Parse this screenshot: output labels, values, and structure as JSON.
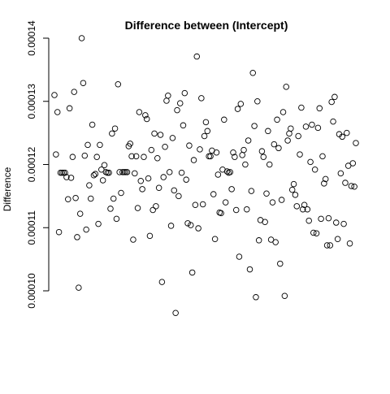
{
  "chart_data": {
    "type": "scatter",
    "title": "Difference between (Intercept)",
    "xlabel": "",
    "ylabel": "Difference",
    "xlim": [
      1,
      200
    ],
    "ylim": [
      9.55e-05,
      0.00014
    ],
    "y_ticks": [
      0.0001,
      0.00011,
      0.00012,
      0.00013,
      0.00014
    ],
    "y_tick_labels": [
      "0.00010",
      "0.00011",
      "0.00012",
      "0.00013",
      "0.00014"
    ],
    "x_ticks_shown": false,
    "grid": false,
    "legend": "none",
    "marker": "open-circle",
    "points": [
      {
        "x": 1,
        "y": 0.000131
      },
      {
        "x": 2,
        "y": 0.0001216
      },
      {
        "x": 3,
        "y": 0.0001283
      },
      {
        "x": 4,
        "y": 0.0001093
      },
      {
        "x": 5,
        "y": 0.0001187
      },
      {
        "x": 6,
        "y": 0.0001187
      },
      {
        "x": 7,
        "y": 0.0001187
      },
      {
        "x": 8,
        "y": 0.0001187
      },
      {
        "x": 9,
        "y": 0.000118
      },
      {
        "x": 10,
        "y": 0.0001145
      },
      {
        "x": 11,
        "y": 0.0001289
      },
      {
        "x": 12,
        "y": 0.0001179
      },
      {
        "x": 13,
        "y": 0.0001212
      },
      {
        "x": 14,
        "y": 0.0001315
      },
      {
        "x": 15,
        "y": 0.0001147
      },
      {
        "x": 16,
        "y": 0.0001085
      },
      {
        "x": 17,
        "y": 0.0001005
      },
      {
        "x": 18,
        "y": 0.0001122
      },
      {
        "x": 19,
        "y": 0.00014
      },
      {
        "x": 20,
        "y": 0.0001329
      },
      {
        "x": 21,
        "y": 0.0001214
      },
      {
        "x": 22,
        "y": 0.0001097
      },
      {
        "x": 23,
        "y": 0.0001231
      },
      {
        "x": 24,
        "y": 0.0001167
      },
      {
        "x": 25,
        "y": 0.0001146
      },
      {
        "x": 26,
        "y": 0.0001263
      },
      {
        "x": 27,
        "y": 0.0001183
      },
      {
        "x": 28,
        "y": 0.0001185
      },
      {
        "x": 29,
        "y": 0.0001212
      },
      {
        "x": 30,
        "y": 0.0001106
      },
      {
        "x": 31,
        "y": 0.0001231
      },
      {
        "x": 32,
        "y": 0.0001192
      },
      {
        "x": 33,
        "y": 0.0001175
      },
      {
        "x": 34,
        "y": 0.0001199
      },
      {
        "x": 35,
        "y": 0.0001188
      },
      {
        "x": 36,
        "y": 0.0001187
      },
      {
        "x": 37,
        "y": 0.0001187
      },
      {
        "x": 38,
        "y": 0.000113
      },
      {
        "x": 39,
        "y": 0.0001249
      },
      {
        "x": 40,
        "y": 0.0001146
      },
      {
        "x": 41,
        "y": 0.0001257
      },
      {
        "x": 42,
        "y": 0.0001114
      },
      {
        "x": 43,
        "y": 0.0001327
      },
      {
        "x": 44,
        "y": 0.0001188
      },
      {
        "x": 45,
        "y": 0.0001155
      },
      {
        "x": 46,
        "y": 0.0001188
      },
      {
        "x": 47,
        "y": 0.0001188
      },
      {
        "x": 48,
        "y": 0.0001188
      },
      {
        "x": 49,
        "y": 0.0001188
      },
      {
        "x": 50,
        "y": 0.0001229
      },
      {
        "x": 51,
        "y": 0.0001233
      },
      {
        "x": 52,
        "y": 0.0001213
      },
      {
        "x": 53,
        "y": 0.0001081
      },
      {
        "x": 54,
        "y": 0.0001186
      },
      {
        "x": 55,
        "y": 0.0001213
      },
      {
        "x": 56,
        "y": 0.0001131
      },
      {
        "x": 57,
        "y": 0.0001283
      },
      {
        "x": 58,
        "y": 0.0001174
      },
      {
        "x": 59,
        "y": 0.0001161
      },
      {
        "x": 60,
        "y": 0.0001212
      },
      {
        "x": 61,
        "y": 0.0001278
      },
      {
        "x": 62,
        "y": 0.0001272
      },
      {
        "x": 63,
        "y": 0.0001178
      },
      {
        "x": 64,
        "y": 0.0001087
      },
      {
        "x": 65,
        "y": 0.0001223
      },
      {
        "x": 66,
        "y": 0.0001128
      },
      {
        "x": 67,
        "y": 0.0001249
      },
      {
        "x": 68,
        "y": 0.0001134
      },
      {
        "x": 69,
        "y": 0.000121
      },
      {
        "x": 70,
        "y": 0.0001163
      },
      {
        "x": 71,
        "y": 0.0001247
      },
      {
        "x": 72,
        "y": 0.0001014
      },
      {
        "x": 73,
        "y": 0.000118
      },
      {
        "x": 74,
        "y": 0.0001228
      },
      {
        "x": 75,
        "y": 0.0001301
      },
      {
        "x": 76,
        "y": 0.0001309
      },
      {
        "x": 77,
        "y": 0.0001188
      },
      {
        "x": 78,
        "y": 0.0001103
      },
      {
        "x": 79,
        "y": 0.0001242
      },
      {
        "x": 80,
        "y": 0.0001159
      },
      {
        "x": 81,
        "y": 9.65e-05
      },
      {
        "x": 82,
        "y": 0.0001286
      },
      {
        "x": 83,
        "y": 0.000115
      },
      {
        "x": 84,
        "y": 0.0001297
      },
      {
        "x": 85,
        "y": 0.0001187
      },
      {
        "x": 86,
        "y": 0.0001262
      },
      {
        "x": 87,
        "y": 0.0001313
      },
      {
        "x": 88,
        "y": 0.0001176
      },
      {
        "x": 89,
        "y": 0.0001107
      },
      {
        "x": 90,
        "y": 0.000123
      },
      {
        "x": 91,
        "y": 0.0001104
      },
      {
        "x": 92,
        "y": 0.0001029
      },
      {
        "x": 93,
        "y": 0.0001207
      },
      {
        "x": 94,
        "y": 0.0001136
      },
      {
        "x": 95,
        "y": 0.0001371
      },
      {
        "x": 96,
        "y": 0.0001099
      },
      {
        "x": 97,
        "y": 0.0001224
      },
      {
        "x": 98,
        "y": 0.0001305
      },
      {
        "x": 99,
        "y": 0.0001137
      },
      {
        "x": 100,
        "y": 0.0001245
      },
      {
        "x": 101,
        "y": 0.0001267
      },
      {
        "x": 102,
        "y": 0.0001253
      },
      {
        "x": 103,
        "y": 0.0001213
      },
      {
        "x": 104,
        "y": 0.0001213
      },
      {
        "x": 105,
        "y": 0.0001222
      },
      {
        "x": 106,
        "y": 0.0001153
      },
      {
        "x": 107,
        "y": 0.0001082
      },
      {
        "x": 108,
        "y": 0.0001219
      },
      {
        "x": 109,
        "y": 0.0001184
      },
      {
        "x": 110,
        "y": 0.0001124
      },
      {
        "x": 111,
        "y": 0.0001123
      },
      {
        "x": 112,
        "y": 0.0001192
      },
      {
        "x": 113,
        "y": 0.0001271
      },
      {
        "x": 114,
        "y": 0.000114
      },
      {
        "x": 115,
        "y": 0.0001189
      },
      {
        "x": 116,
        "y": 0.0001187
      },
      {
        "x": 117,
        "y": 0.0001188
      },
      {
        "x": 118,
        "y": 0.0001161
      },
      {
        "x": 119,
        "y": 0.0001219
      },
      {
        "x": 120,
        "y": 0.0001212
      },
      {
        "x": 121,
        "y": 0.0001128
      },
      {
        "x": 122,
        "y": 0.0001288
      },
      {
        "x": 123,
        "y": 0.0001054
      },
      {
        "x": 124,
        "y": 0.0001296
      },
      {
        "x": 125,
        "y": 0.0001215
      },
      {
        "x": 126,
        "y": 0.0001223
      },
      {
        "x": 127,
        "y": 0.00012
      },
      {
        "x": 128,
        "y": 0.0001129
      },
      {
        "x": 129,
        "y": 0.0001238
      },
      {
        "x": 130,
        "y": 0.0001034
      },
      {
        "x": 131,
        "y": 0.0001158
      },
      {
        "x": 132,
        "y": 0.0001345
      },
      {
        "x": 133,
        "y": 0.0001261
      },
      {
        "x": 134,
        "y": 9.9e-05
      },
      {
        "x": 135,
        "y": 0.00013
      },
      {
        "x": 136,
        "y": 0.000108
      },
      {
        "x": 137,
        "y": 0.0001112
      },
      {
        "x": 138,
        "y": 0.0001221
      },
      {
        "x": 139,
        "y": 0.0001212
      },
      {
        "x": 140,
        "y": 0.0001109
      },
      {
        "x": 141,
        "y": 0.0001154
      },
      {
        "x": 142,
        "y": 0.0001253
      },
      {
        "x": 143,
        "y": 0.00012
      },
      {
        "x": 144,
        "y": 0.0001081
      },
      {
        "x": 145,
        "y": 0.000114
      },
      {
        "x": 146,
        "y": 0.0001232
      },
      {
        "x": 147,
        "y": 0.0001077
      },
      {
        "x": 148,
        "y": 0.0001271
      },
      {
        "x": 149,
        "y": 0.0001226
      },
      {
        "x": 150,
        "y": 0.0001043
      },
      {
        "x": 151,
        "y": 0.0001144
      },
      {
        "x": 152,
        "y": 0.0001283
      },
      {
        "x": 153,
        "y": 9.92e-05
      },
      {
        "x": 154,
        "y": 0.0001323
      },
      {
        "x": 155,
        "y": 0.0001238
      },
      {
        "x": 156,
        "y": 0.0001249
      },
      {
        "x": 157,
        "y": 0.0001257
      },
      {
        "x": 158,
        "y": 0.000116
      },
      {
        "x": 159,
        "y": 0.0001169
      },
      {
        "x": 160,
        "y": 0.0001152
      },
      {
        "x": 161,
        "y": 0.0001134
      },
      {
        "x": 162,
        "y": 0.0001245
      },
      {
        "x": 163,
        "y": 0.0001216
      },
      {
        "x": 164,
        "y": 0.000129
      },
      {
        "x": 165,
        "y": 0.0001129
      },
      {
        "x": 166,
        "y": 0.0001136
      },
      {
        "x": 167,
        "y": 0.000126
      },
      {
        "x": 168,
        "y": 0.0001129
      },
      {
        "x": 169,
        "y": 0.0001111
      },
      {
        "x": 170,
        "y": 0.0001204
      },
      {
        "x": 171,
        "y": 0.0001263
      },
      {
        "x": 172,
        "y": 0.0001092
      },
      {
        "x": 173,
        "y": 0.0001192
      },
      {
        "x": 174,
        "y": 0.0001091
      },
      {
        "x": 175,
        "y": 0.0001258
      },
      {
        "x": 176,
        "y": 0.0001289
      },
      {
        "x": 177,
        "y": 0.0001114
      },
      {
        "x": 178,
        "y": 0.0001213
      },
      {
        "x": 179,
        "y": 0.000117
      },
      {
        "x": 180,
        "y": 0.0001177
      },
      {
        "x": 181,
        "y": 0.0001072
      },
      {
        "x": 182,
        "y": 0.0001115
      },
      {
        "x": 183,
        "y": 0.0001072
      },
      {
        "x": 184,
        "y": 0.0001299
      },
      {
        "x": 185,
        "y": 0.0001268
      },
      {
        "x": 186,
        "y": 0.0001307
      },
      {
        "x": 187,
        "y": 0.0001108
      },
      {
        "x": 188,
        "y": 0.0001082
      },
      {
        "x": 189,
        "y": 0.0001248
      },
      {
        "x": 190,
        "y": 0.0001186
      },
      {
        "x": 191,
        "y": 0.0001244
      },
      {
        "x": 192,
        "y": 0.0001106
      },
      {
        "x": 193,
        "y": 0.0001171
      },
      {
        "x": 194,
        "y": 0.000125
      },
      {
        "x": 195,
        "y": 0.0001198
      },
      {
        "x": 196,
        "y": 0.0001075
      },
      {
        "x": 197,
        "y": 0.0001166
      },
      {
        "x": 198,
        "y": 0.0001202
      },
      {
        "x": 199,
        "y": 0.0001165
      },
      {
        "x": 200,
        "y": 0.0001234
      }
    ]
  }
}
